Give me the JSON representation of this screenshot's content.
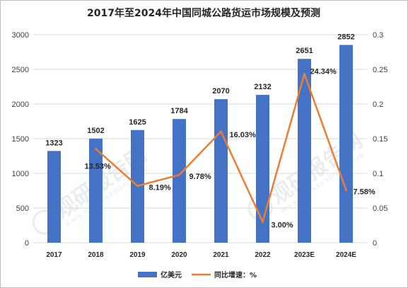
{
  "chart_data": {
    "type": "bar+line",
    "title": "2017年至2024年中国同城公路货运市场规模及预测",
    "categories": [
      "2017",
      "2018",
      "2019",
      "2020",
      "2021",
      "2022",
      "2023E",
      "2024E"
    ],
    "series": [
      {
        "name": "亿美元",
        "type": "bar",
        "axis": "left",
        "color": "#4472c4",
        "values": [
          1323,
          1502,
          1625,
          1784,
          2070,
          2132,
          2651,
          2852
        ],
        "labels": [
          "1323",
          "1502",
          "1625",
          "1784",
          "2070",
          "2132",
          "2651",
          "2852"
        ]
      },
      {
        "name": "同比增速：%",
        "type": "line",
        "axis": "right",
        "color": "#ed7d31",
        "values": [
          null,
          0.1353,
          0.0819,
          0.0978,
          0.1603,
          0.03,
          0.2434,
          0.0758
        ],
        "labels": [
          "",
          "13.53%",
          "8.19%",
          "9.78%",
          "16.03%",
          "3.00%",
          "24.34%",
          "7.58%"
        ]
      }
    ],
    "y_left": {
      "min": 0,
      "max": 3000,
      "ticks": [
        "0",
        "500",
        "1000",
        "1500",
        "2000",
        "2500",
        "3000"
      ]
    },
    "y_right": {
      "min": 0,
      "max": 0.3,
      "ticks": [
        "0",
        "0.05",
        "0.1",
        "0.15",
        "0.2",
        "0.25",
        "0.3"
      ]
    },
    "grid": "horizontal",
    "legend": "bottom-center"
  },
  "watermark": {
    "text": "观研报告网",
    "sub": "WWW.CHINABAOGAO.COM"
  }
}
